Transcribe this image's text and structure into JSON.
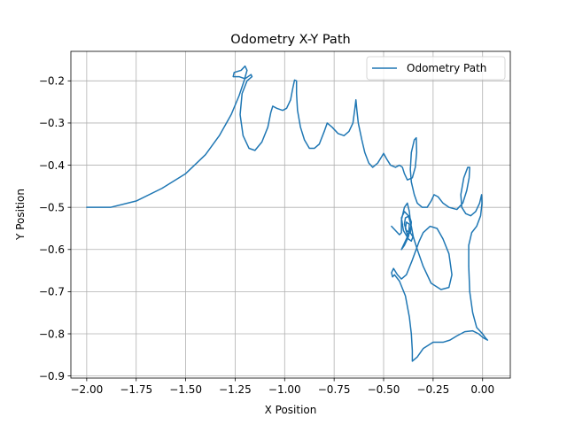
{
  "chart_data": {
    "type": "line",
    "title": "Odometry X-Y Path",
    "xlabel": "X Position",
    "ylabel": "Y Position",
    "xlim": [
      -2.08,
      0.14
    ],
    "ylim": [
      -0.905,
      -0.13
    ],
    "xticks": [
      -2.0,
      -1.75,
      -1.5,
      -1.25,
      -1.0,
      -0.75,
      -0.5,
      -0.25,
      0.0
    ],
    "xtick_labels": [
      "−2.00",
      "−1.75",
      "−1.50",
      "−1.25",
      "−1.00",
      "−0.75",
      "−0.50",
      "−0.25",
      "0.00"
    ],
    "yticks": [
      -0.9,
      -0.8,
      -0.7,
      -0.6,
      -0.5,
      -0.4,
      -0.3,
      -0.2
    ],
    "ytick_labels": [
      "−0.9",
      "−0.8",
      "−0.7",
      "−0.6",
      "−0.5",
      "−0.4",
      "−0.3",
      "−0.2"
    ],
    "grid": true,
    "legend_position": "top-right",
    "series": [
      {
        "name": "Odometry Path",
        "color": "#1f77b4",
        "points": [
          [
            -2.0,
            -0.5
          ],
          [
            -1.88,
            -0.5
          ],
          [
            -1.75,
            -0.485
          ],
          [
            -1.62,
            -0.455
          ],
          [
            -1.5,
            -0.42
          ],
          [
            -1.4,
            -0.375
          ],
          [
            -1.33,
            -0.33
          ],
          [
            -1.27,
            -0.28
          ],
          [
            -1.23,
            -0.235
          ],
          [
            -1.205,
            -0.2
          ],
          [
            -1.19,
            -0.175
          ],
          [
            -1.2,
            -0.165
          ],
          [
            -1.22,
            -0.175
          ],
          [
            -1.255,
            -0.18
          ],
          [
            -1.26,
            -0.19
          ],
          [
            -1.23,
            -0.19
          ],
          [
            -1.2,
            -0.195
          ],
          [
            -1.17,
            -0.185
          ],
          [
            -1.165,
            -0.19
          ],
          [
            -1.19,
            -0.2
          ],
          [
            -1.215,
            -0.23
          ],
          [
            -1.225,
            -0.28
          ],
          [
            -1.21,
            -0.33
          ],
          [
            -1.18,
            -0.36
          ],
          [
            -1.15,
            -0.365
          ],
          [
            -1.115,
            -0.345
          ],
          [
            -1.085,
            -0.31
          ],
          [
            -1.07,
            -0.275
          ],
          [
            -1.06,
            -0.26
          ],
          [
            -1.04,
            -0.265
          ],
          [
            -1.01,
            -0.27
          ],
          [
            -0.99,
            -0.265
          ],
          [
            -0.97,
            -0.245
          ],
          [
            -0.96,
            -0.22
          ],
          [
            -0.95,
            -0.198
          ],
          [
            -0.94,
            -0.2
          ],
          [
            -0.94,
            -0.23
          ],
          [
            -0.935,
            -0.27
          ],
          [
            -0.92,
            -0.31
          ],
          [
            -0.9,
            -0.34
          ],
          [
            -0.875,
            -0.36
          ],
          [
            -0.85,
            -0.36
          ],
          [
            -0.825,
            -0.35
          ],
          [
            -0.8,
            -0.32
          ],
          [
            -0.785,
            -0.3
          ],
          [
            -0.76,
            -0.31
          ],
          [
            -0.73,
            -0.325
          ],
          [
            -0.7,
            -0.33
          ],
          [
            -0.675,
            -0.32
          ],
          [
            -0.655,
            -0.3
          ],
          [
            -0.645,
            -0.265
          ],
          [
            -0.64,
            -0.245
          ],
          [
            -0.635,
            -0.27
          ],
          [
            -0.628,
            -0.3
          ],
          [
            -0.61,
            -0.34
          ],
          [
            -0.595,
            -0.37
          ],
          [
            -0.575,
            -0.395
          ],
          [
            -0.555,
            -0.405
          ],
          [
            -0.53,
            -0.395
          ],
          [
            -0.51,
            -0.38
          ],
          [
            -0.5,
            -0.372
          ],
          [
            -0.485,
            -0.385
          ],
          [
            -0.465,
            -0.4
          ],
          [
            -0.44,
            -0.405
          ],
          [
            -0.42,
            -0.4
          ],
          [
            -0.405,
            -0.405
          ],
          [
            -0.395,
            -0.42
          ],
          [
            -0.38,
            -0.435
          ],
          [
            -0.355,
            -0.43
          ],
          [
            -0.34,
            -0.405
          ],
          [
            -0.333,
            -0.37
          ],
          [
            -0.335,
            -0.335
          ],
          [
            -0.345,
            -0.34
          ],
          [
            -0.36,
            -0.37
          ],
          [
            -0.365,
            -0.41
          ],
          [
            -0.36,
            -0.44
          ],
          [
            -0.345,
            -0.47
          ],
          [
            -0.33,
            -0.49
          ],
          [
            -0.305,
            -0.5
          ],
          [
            -0.28,
            -0.5
          ],
          [
            -0.26,
            -0.485
          ],
          [
            -0.245,
            -0.47
          ],
          [
            -0.225,
            -0.475
          ],
          [
            -0.2,
            -0.49
          ],
          [
            -0.17,
            -0.5
          ],
          [
            -0.13,
            -0.505
          ],
          [
            -0.1,
            -0.49
          ],
          [
            -0.08,
            -0.46
          ],
          [
            -0.068,
            -0.43
          ],
          [
            -0.065,
            -0.405
          ],
          [
            -0.075,
            -0.405
          ],
          [
            -0.095,
            -0.43
          ],
          [
            -0.11,
            -0.47
          ],
          [
            -0.105,
            -0.5
          ],
          [
            -0.085,
            -0.515
          ],
          [
            -0.06,
            -0.52
          ],
          [
            -0.035,
            -0.51
          ],
          [
            -0.015,
            -0.49
          ],
          [
            -0.005,
            -0.47
          ],
          [
            -0.003,
            -0.49
          ],
          [
            -0.01,
            -0.52
          ],
          [
            -0.03,
            -0.545
          ],
          [
            -0.055,
            -0.56
          ],
          [
            -0.07,
            -0.59
          ],
          [
            -0.07,
            -0.64
          ],
          [
            -0.065,
            -0.7
          ],
          [
            -0.05,
            -0.75
          ],
          [
            -0.03,
            -0.785
          ],
          [
            0.0,
            -0.8
          ],
          [
            0.015,
            -0.81
          ],
          [
            0.025,
            -0.815
          ],
          [
            0.005,
            -0.81
          ],
          [
            -0.02,
            -0.8
          ],
          [
            -0.05,
            -0.793
          ],
          [
            -0.09,
            -0.795
          ],
          [
            -0.13,
            -0.805
          ],
          [
            -0.165,
            -0.815
          ],
          [
            -0.2,
            -0.82
          ],
          [
            -0.25,
            -0.82
          ],
          [
            -0.3,
            -0.835
          ],
          [
            -0.33,
            -0.855
          ],
          [
            -0.355,
            -0.865
          ],
          [
            -0.355,
            -0.84
          ],
          [
            -0.36,
            -0.8
          ],
          [
            -0.37,
            -0.76
          ],
          [
            -0.39,
            -0.71
          ],
          [
            -0.42,
            -0.675
          ],
          [
            -0.445,
            -0.66
          ],
          [
            -0.455,
            -0.665
          ],
          [
            -0.46,
            -0.655
          ],
          [
            -0.45,
            -0.645
          ],
          [
            -0.43,
            -0.66
          ],
          [
            -0.41,
            -0.67
          ],
          [
            -0.385,
            -0.66
          ],
          [
            -0.355,
            -0.625
          ],
          [
            -0.32,
            -0.58
          ],
          [
            -0.3,
            -0.56
          ],
          [
            -0.265,
            -0.545
          ],
          [
            -0.23,
            -0.55
          ],
          [
            -0.2,
            -0.575
          ],
          [
            -0.17,
            -0.61
          ],
          [
            -0.155,
            -0.66
          ],
          [
            -0.17,
            -0.69
          ],
          [
            -0.21,
            -0.695
          ],
          [
            -0.26,
            -0.68
          ],
          [
            -0.3,
            -0.64
          ],
          [
            -0.33,
            -0.6
          ],
          [
            -0.35,
            -0.57
          ],
          [
            -0.36,
            -0.545
          ],
          [
            -0.375,
            -0.52
          ],
          [
            -0.395,
            -0.51
          ],
          [
            -0.41,
            -0.525
          ],
          [
            -0.4,
            -0.555
          ],
          [
            -0.375,
            -0.575
          ],
          [
            -0.36,
            -0.58
          ],
          [
            -0.352,
            -0.57
          ],
          [
            -0.365,
            -0.56
          ],
          [
            -0.385,
            -0.555
          ],
          [
            -0.395,
            -0.54
          ],
          [
            -0.39,
            -0.525
          ],
          [
            -0.37,
            -0.52
          ],
          [
            -0.36,
            -0.535
          ],
          [
            -0.365,
            -0.56
          ],
          [
            -0.38,
            -0.565
          ],
          [
            -0.39,
            -0.55
          ],
          [
            -0.385,
            -0.535
          ],
          [
            -0.37,
            -0.54
          ],
          [
            -0.372,
            -0.555
          ],
          [
            -0.38,
            -0.57
          ],
          [
            -0.4,
            -0.59
          ],
          [
            -0.41,
            -0.6
          ],
          [
            -0.395,
            -0.59
          ],
          [
            -0.375,
            -0.57
          ],
          [
            -0.362,
            -0.545
          ],
          [
            -0.37,
            -0.51
          ],
          [
            -0.38,
            -0.49
          ],
          [
            -0.395,
            -0.5
          ],
          [
            -0.41,
            -0.53
          ],
          [
            -0.41,
            -0.56
          ],
          [
            -0.42,
            -0.565
          ],
          [
            -0.44,
            -0.555
          ],
          [
            -0.46,
            -0.545
          ]
        ]
      }
    ]
  }
}
